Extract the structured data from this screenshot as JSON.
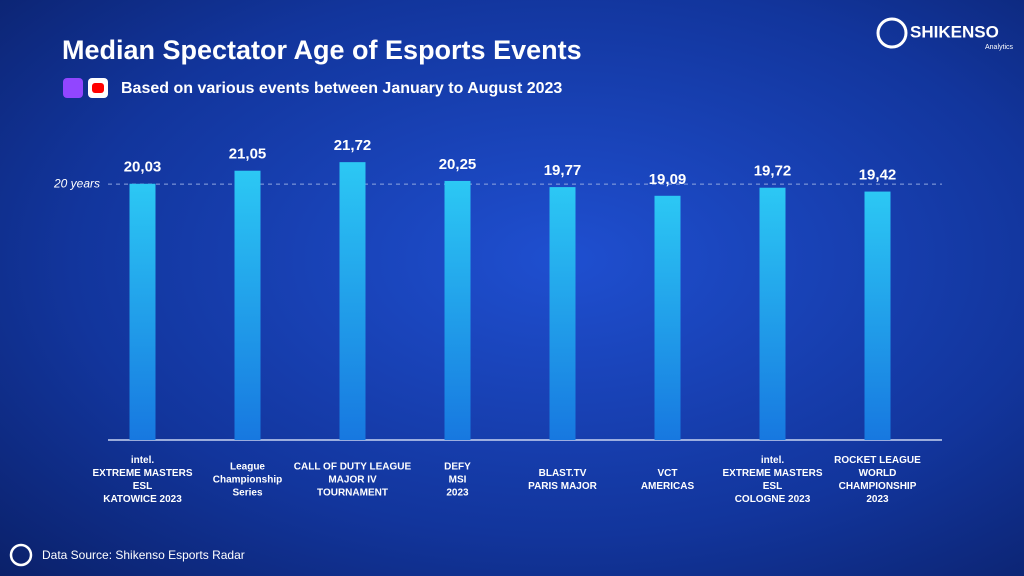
{
  "chart_data": {
    "type": "bar",
    "title": "Median Spectator Age of Esports Events",
    "subtitle": "Based on various events between January to August 2023",
    "brand": "SHIKENSO",
    "brand_sub": "Analytics",
    "source": "Data Source: Shikenso Esports Radar",
    "categories": [
      [
        "intel.",
        "EXTREME MASTERS",
        "ESL",
        "KATOWICE 2023"
      ],
      [
        "League",
        "Championship",
        "Series"
      ],
      [
        "CALL OF DUTY LEAGUE",
        "MAJOR IV",
        "TOURNAMENT"
      ],
      [
        "DEFY",
        "MSI",
        "2023"
      ],
      [
        "BLAST.TV",
        "PARIS MAJOR"
      ],
      [
        "VCT",
        "AMERICAS"
      ],
      [
        "intel.",
        "EXTREME MASTERS",
        "ESL",
        "COLOGNE 2023"
      ],
      [
        "ROCKET LEAGUE",
        "WORLD",
        "CHAMPIONSHIP",
        "2023"
      ]
    ],
    "values": [
      20.03,
      21.05,
      21.72,
      20.25,
      19.77,
      19.09,
      19.72,
      19.42
    ],
    "value_labels": [
      "20,03",
      "21,05",
      "21,72",
      "20,25",
      "19,77",
      "19,09",
      "19,72",
      "19,42"
    ],
    "color": "#22b8ee",
    "ylim": [
      0,
      26.5
    ],
    "reference_line": {
      "value": 20,
      "label": "20 years"
    }
  }
}
